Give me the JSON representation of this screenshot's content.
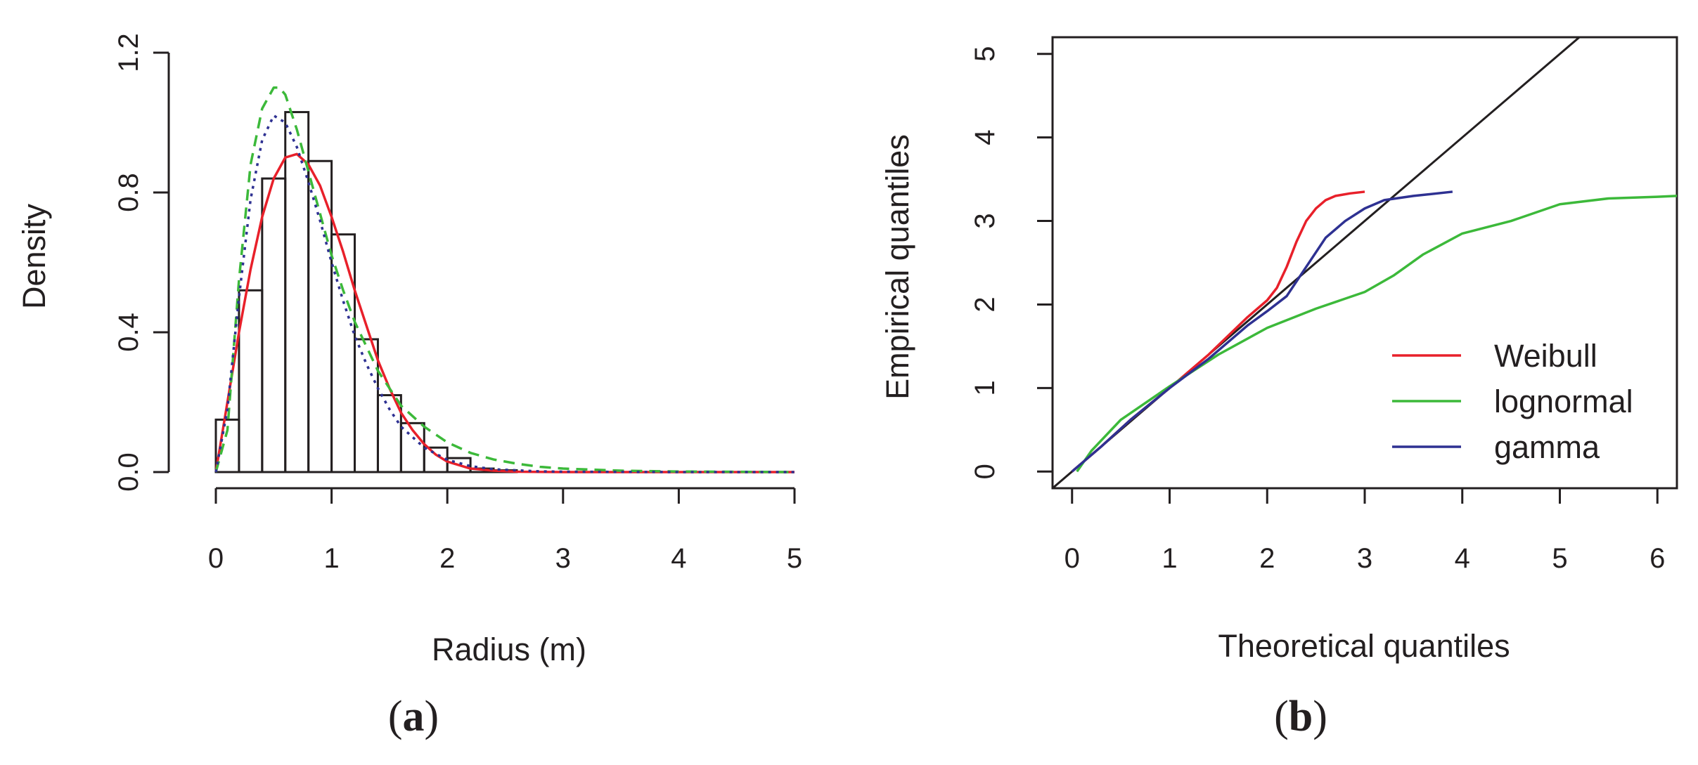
{
  "chart_data": [
    {
      "type": "bar",
      "panel_label": "a",
      "xlabel": "Radius (m)",
      "ylabel": "Density",
      "xlim": [
        0,
        5
      ],
      "ylim": [
        0,
        1.2
      ],
      "x_ticks": [
        "0",
        "1",
        "2",
        "3",
        "4",
        "5"
      ],
      "y_ticks": [
        "0.0",
        "0.4",
        "0.8",
        "1.2"
      ],
      "bin_width": 0.2,
      "bins_start": [
        0.0,
        0.2,
        0.4,
        0.6,
        0.8,
        1.0,
        1.2,
        1.4,
        1.6,
        1.8,
        2.0,
        2.2,
        2.4
      ],
      "values": [
        0.15,
        0.52,
        0.84,
        1.03,
        0.89,
        0.68,
        0.38,
        0.22,
        0.14,
        0.07,
        0.04,
        0.01,
        0.005
      ],
      "fitted_series": [
        {
          "name": "Weibull",
          "color": "#e8202a",
          "style": "solid",
          "x": [
            0,
            0.1,
            0.2,
            0.3,
            0.4,
            0.5,
            0.6,
            0.7,
            0.8,
            0.9,
            1.0,
            1.1,
            1.2,
            1.3,
            1.4,
            1.5,
            1.6,
            1.7,
            1.8,
            1.9,
            2.0,
            2.2,
            2.4,
            2.6,
            3.0,
            3.5,
            4.0,
            5.0
          ],
          "y": [
            0,
            0.2,
            0.4,
            0.58,
            0.73,
            0.84,
            0.9,
            0.91,
            0.88,
            0.82,
            0.73,
            0.63,
            0.52,
            0.42,
            0.32,
            0.24,
            0.17,
            0.12,
            0.08,
            0.05,
            0.03,
            0.01,
            0.004,
            0.001,
            0,
            0,
            0,
            0
          ]
        },
        {
          "name": "lognormal",
          "color": "#3cb93a",
          "style": "dashed",
          "x": [
            0,
            0.1,
            0.2,
            0.3,
            0.4,
            0.5,
            0.55,
            0.6,
            0.7,
            0.8,
            0.9,
            1.0,
            1.1,
            1.2,
            1.4,
            1.6,
            1.8,
            2.0,
            2.2,
            2.4,
            2.6,
            2.8,
            3.0,
            3.5,
            4.0,
            5.0
          ],
          "y": [
            0,
            0.12,
            0.55,
            0.88,
            1.04,
            1.1,
            1.1,
            1.08,
            0.98,
            0.86,
            0.74,
            0.62,
            0.52,
            0.43,
            0.29,
            0.19,
            0.13,
            0.085,
            0.055,
            0.036,
            0.024,
            0.015,
            0.01,
            0.004,
            0.0015,
            0
          ]
        },
        {
          "name": "gamma",
          "color": "#2e3192",
          "style": "dotted",
          "x": [
            0,
            0.1,
            0.2,
            0.3,
            0.4,
            0.5,
            0.6,
            0.7,
            0.8,
            0.9,
            1.0,
            1.1,
            1.2,
            1.3,
            1.4,
            1.5,
            1.6,
            1.8,
            2.0,
            2.2,
            2.4,
            2.8,
            3.0,
            4.0,
            5.0
          ],
          "y": [
            0,
            0.18,
            0.5,
            0.78,
            0.95,
            1.02,
            1.0,
            0.93,
            0.83,
            0.72,
            0.6,
            0.49,
            0.39,
            0.31,
            0.24,
            0.18,
            0.13,
            0.07,
            0.035,
            0.017,
            0.008,
            0.002,
            0.001,
            0,
            0
          ]
        }
      ]
    },
    {
      "type": "line",
      "panel_label": "b",
      "xlabel": "Theoretical quantiles",
      "ylabel": "Empirical quantiles",
      "xlim": [
        -0.2,
        6.2
      ],
      "ylim": [
        -0.2,
        5.2
      ],
      "x_ticks": [
        "0",
        "1",
        "2",
        "3",
        "4",
        "5",
        "6"
      ],
      "y_ticks": [
        "0",
        "1",
        "2",
        "3",
        "4",
        "5"
      ],
      "legend_position": "bottom-right",
      "reference_line": {
        "slope": 1,
        "intercept": 0,
        "color": "#231f20"
      },
      "series": [
        {
          "name": "Weibull",
          "color": "#e8202a",
          "x": [
            0,
            0.3,
            0.6,
            1.0,
            1.4,
            1.8,
            2.0,
            2.1,
            2.2,
            2.3,
            2.4,
            2.5,
            2.6,
            2.7,
            2.85,
            3.0
          ],
          "y": [
            0,
            0.3,
            0.62,
            1.0,
            1.4,
            1.85,
            2.05,
            2.2,
            2.45,
            2.75,
            3.0,
            3.15,
            3.25,
            3.3,
            3.33,
            3.35
          ]
        },
        {
          "name": "lognormal",
          "color": "#3cb93a",
          "x": [
            0.05,
            0.2,
            0.5,
            1.0,
            1.5,
            2.0,
            2.5,
            3.0,
            3.3,
            3.6,
            4.0,
            4.5,
            5.0,
            5.5,
            6.0,
            6.2
          ],
          "y": [
            0,
            0.25,
            0.62,
            1.02,
            1.4,
            1.72,
            1.95,
            2.15,
            2.35,
            2.6,
            2.85,
            3.0,
            3.2,
            3.27,
            3.29,
            3.3
          ]
        },
        {
          "name": "gamma",
          "color": "#2e3192",
          "x": [
            0,
            0.3,
            0.6,
            1.0,
            1.4,
            1.8,
            2.0,
            2.2,
            2.4,
            2.6,
            2.8,
            3.0,
            3.2,
            3.5,
            3.9
          ],
          "y": [
            0,
            0.3,
            0.62,
            1.0,
            1.35,
            1.75,
            1.92,
            2.1,
            2.45,
            2.8,
            3.0,
            3.15,
            3.25,
            3.3,
            3.35
          ]
        }
      ]
    }
  ]
}
